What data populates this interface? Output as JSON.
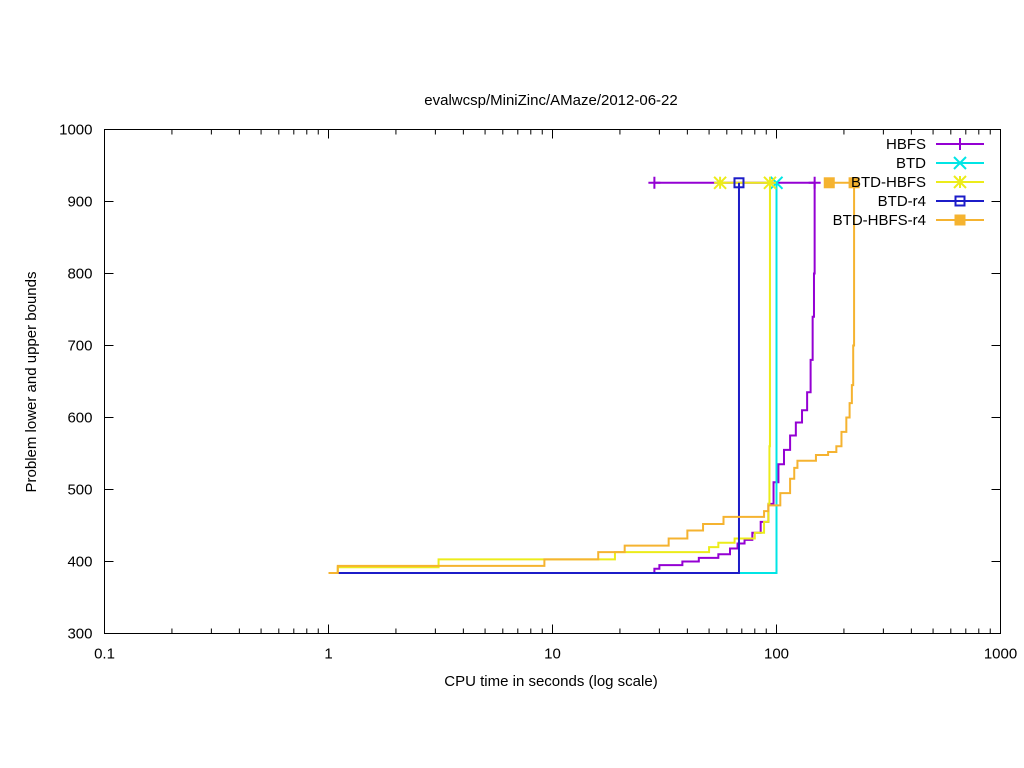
{
  "chart_data": {
    "type": "line",
    "title": "evalwcsp/MiniZinc/AMaze/2012-06-22",
    "xlabel": "CPU time in seconds (log scale)",
    "ylabel": "Problem lower and upper bounds",
    "x_scale": "log",
    "xlim": [
      0.1,
      1000
    ],
    "ylim": [
      300,
      1000
    ],
    "x_ticks": [
      {
        "value": 0.1,
        "label": "0.1"
      },
      {
        "value": 1,
        "label": "1"
      },
      {
        "value": 10,
        "label": "10"
      },
      {
        "value": 100,
        "label": "100"
      },
      {
        "value": 1000,
        "label": "1000"
      }
    ],
    "y_ticks": [
      {
        "value": 300,
        "label": "300"
      },
      {
        "value": 400,
        "label": "400"
      },
      {
        "value": 500,
        "label": "500"
      },
      {
        "value": 600,
        "label": "600"
      },
      {
        "value": 700,
        "label": "700"
      },
      {
        "value": 800,
        "label": "800"
      },
      {
        "value": 900,
        "label": "900"
      },
      {
        "value": 1000,
        "label": "1000"
      }
    ],
    "grid": false,
    "legend_position": "top-right",
    "series": [
      {
        "name": "HBFS",
        "color": "#9400d3",
        "marker": "plus",
        "lower_bound": [
          [
            28.5,
            384
          ],
          [
            28.5,
            390
          ],
          [
            30,
            395
          ],
          [
            38,
            400
          ],
          [
            45,
            405
          ],
          [
            55,
            410
          ],
          [
            62,
            418
          ],
          [
            67,
            425
          ],
          [
            72,
            430
          ],
          [
            78,
            440
          ],
          [
            85,
            455
          ],
          [
            92,
            480
          ],
          [
            97,
            510
          ],
          [
            102,
            535
          ],
          [
            108,
            555
          ],
          [
            115,
            575
          ],
          [
            122,
            593
          ],
          [
            130,
            610
          ],
          [
            137,
            635
          ],
          [
            142,
            680
          ],
          [
            145,
            740
          ],
          [
            147,
            800
          ],
          [
            148,
            926
          ]
        ],
        "upper_bound": [
          [
            28.5,
            926
          ],
          [
            148,
            926
          ]
        ]
      },
      {
        "name": "BTD",
        "color": "#00e5e5",
        "marker": "x",
        "lower_bound": [
          [
            1.0,
            384
          ],
          [
            100,
            384
          ],
          [
            100,
            926
          ]
        ],
        "upper_bound": [
          [
            100,
            926
          ]
        ]
      },
      {
        "name": "BTD-HBFS",
        "color": "#ecec1a",
        "marker": "star",
        "lower_bound": [
          [
            1.0,
            384
          ],
          [
            1.1,
            392
          ],
          [
            3.1,
            403
          ],
          [
            19,
            413
          ],
          [
            50,
            420
          ],
          [
            55,
            426
          ],
          [
            65,
            432
          ],
          [
            80,
            440
          ],
          [
            88,
            455
          ],
          [
            92,
            480
          ],
          [
            93,
            560
          ],
          [
            93.5,
            926
          ]
        ],
        "upper_bound": [
          [
            56,
            926
          ],
          [
            93.5,
            926
          ]
        ]
      },
      {
        "name": "BTD-r4",
        "color": "#1c1cc8",
        "marker": "square-open",
        "lower_bound": [
          [
            1.1,
            384
          ],
          [
            68,
            384
          ],
          [
            68,
            926
          ]
        ],
        "upper_bound": [
          [
            68,
            926
          ]
        ]
      },
      {
        "name": "BTD-HBFS-r4",
        "color": "#f5b330",
        "marker": "square-filled",
        "lower_bound": [
          [
            1.0,
            384
          ],
          [
            1.1,
            394
          ],
          [
            9.2,
            403
          ],
          [
            16,
            413
          ],
          [
            21,
            422
          ],
          [
            33,
            432
          ],
          [
            40,
            443
          ],
          [
            47,
            452
          ],
          [
            58,
            462
          ],
          [
            88,
            470
          ],
          [
            92,
            478
          ],
          [
            104,
            495
          ],
          [
            115,
            515
          ],
          [
            120,
            530
          ],
          [
            124,
            540
          ],
          [
            150,
            548
          ],
          [
            170,
            552
          ],
          [
            185,
            560
          ],
          [
            195,
            580
          ],
          [
            205,
            600
          ],
          [
            212,
            620
          ],
          [
            217,
            645
          ],
          [
            220,
            700
          ],
          [
            222,
            926
          ]
        ],
        "upper_bound": [
          [
            172,
            926
          ],
          [
            222,
            926
          ]
        ]
      }
    ]
  }
}
